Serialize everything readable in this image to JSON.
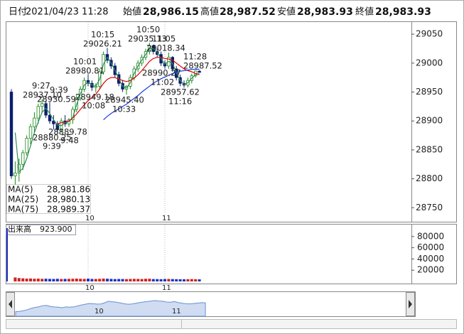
{
  "header": {
    "items": [
      {
        "label": "日付",
        "value": "2021/04/23 11:28"
      },
      {
        "label": "始値",
        "value": "28,986.15"
      },
      {
        "label": "高値",
        "value": "28,987.52"
      },
      {
        "label": "安値",
        "value": "28,983.93"
      },
      {
        "label": "終値",
        "value": "28,983.93"
      }
    ]
  },
  "chart_data": [
    {
      "type": "candlestick",
      "categories": [
        null,
        null,
        null,
        null,
        null,
        null,
        null,
        null,
        null,
        null,
        null,
        null,
        null,
        null,
        null,
        null,
        null,
        null,
        null,
        null,
        "10",
        null,
        null,
        null,
        null,
        null,
        null,
        null,
        null,
        null,
        null,
        null,
        null,
        null,
        null,
        null,
        null,
        null,
        null,
        null,
        "11",
        null,
        null,
        null,
        null,
        null,
        null,
        null,
        null,
        null
      ],
      "open": [
        28950,
        28805,
        28810,
        28825,
        28845,
        28870,
        28890,
        28905,
        28925,
        28930,
        28910,
        28900,
        28895,
        28885,
        28900,
        28895,
        28902,
        28920,
        28940,
        28955,
        28970,
        28965,
        28958,
        28960,
        28985,
        29015,
        29005,
        28995,
        28980,
        28965,
        28955,
        28960,
        28975,
        28990,
        29000,
        29010,
        29020,
        29030,
        29020,
        29015,
        29000,
        28995,
        29010,
        28990,
        28975,
        28965,
        28962,
        28970,
        28978,
        28986.15
      ],
      "high": [
        28955,
        28830,
        28835,
        28850,
        28875,
        28895,
        28915,
        28930,
        28937.1,
        28935,
        28932,
        28910,
        28900,
        28905,
        28910,
        28905,
        28925,
        28945,
        28960,
        28975,
        28980.81,
        28970,
        28965,
        28990,
        29020,
        29026.21,
        29010,
        29000,
        28985,
        28970,
        28962,
        28980,
        28995,
        29005,
        29015,
        29025,
        29035.13,
        29032,
        29025,
        29020,
        29005,
        29018.34,
        29012,
        28995,
        28980,
        28970,
        28975,
        28982,
        28987,
        28987.52
      ],
      "low": [
        28800,
        28790,
        28795,
        28815,
        28840,
        28860,
        28880,
        28895,
        28915,
        28905,
        28895,
        28885,
        28880.25,
        28880,
        28890,
        28889.78,
        28895,
        28915,
        28935,
        28950,
        28960,
        28952,
        28949.18,
        28955,
        28980,
        29000,
        28990,
        28975,
        28960,
        28950,
        28945.4,
        28955,
        28970,
        28985,
        28995,
        29005,
        29015,
        29015,
        29010,
        28995,
        28990.27,
        28990,
        28985,
        28970,
        28960,
        28957.62,
        28958,
        28965,
        28975,
        28983.93
      ],
      "close": [
        28805,
        28810,
        28825,
        28845,
        28870,
        28890,
        28905,
        28925,
        28930,
        28910,
        28900,
        28895,
        28885,
        28900,
        28895,
        28902,
        28920,
        28940,
        28955,
        28970,
        28965,
        28958,
        28960,
        28985,
        29015,
        29005,
        28995,
        28980,
        28965,
        28955,
        28960,
        28975,
        28990,
        29000,
        29010,
        29020,
        29030,
        29020,
        29015,
        29000,
        28995,
        29010,
        28990,
        28975,
        28965,
        28962,
        28970,
        28978,
        28986.15,
        28983.93
      ],
      "up_color": "#1a8a1a",
      "down_color": "#0a1f6e",
      "series": [
        {
          "name": "MA(5)",
          "color": "#2e8b57",
          "last_label": "28,981.86",
          "values": [
            null,
            28880,
            28812,
            28818,
            28835,
            28857,
            28880,
            28898,
            28915,
            28922,
            28913,
            28902,
            28893,
            28892,
            28897,
            28899,
            28906,
            28928,
            28947,
            28962,
            28967,
            28962,
            28960,
            28972,
            28998,
            29010,
            29000,
            28988,
            28973,
            28960,
            28957,
            28966,
            28982,
            28995,
            29005,
            29015,
            29025,
            29025,
            29018,
            29008,
            28998,
            29003,
            29000,
            28983,
            28970,
            28963,
            28966,
            28974,
            28980,
            28981.86
          ]
        },
        {
          "name": "MA(25)",
          "color": "#e00000",
          "last_label": "28,980.13",
          "values": [
            null,
            null,
            null,
            null,
            null,
            null,
            null,
            null,
            null,
            null,
            null,
            null,
            28895,
            28897,
            28898,
            28900,
            28905,
            28912,
            28920,
            28928,
            28935,
            28940,
            28946,
            28955,
            28965,
            28972,
            28975,
            28975,
            28972,
            28970,
            28968,
            28970,
            28974,
            28980,
            28987,
            28995,
            29003,
            29008,
            29010,
            29010,
            29008,
            29007,
            29005,
            29000,
            28995,
            28990,
            28987,
            28985,
            28982,
            28980.13
          ]
        },
        {
          "name": "MA(75)",
          "color": "#1a3adf",
          "last_label": "28,989.37",
          "values": [
            null,
            null,
            null,
            null,
            null,
            null,
            null,
            null,
            null,
            null,
            null,
            null,
            null,
            null,
            null,
            null,
            null,
            null,
            null,
            null,
            null,
            null,
            null,
            null,
            28902,
            28908,
            28913,
            28917,
            28921,
            28925,
            28929,
            28934,
            28939,
            28944,
            28950,
            28955,
            28960,
            28965,
            28969,
            28973,
            28976,
            28979,
            28982,
            28984,
            28986,
            28987,
            28988,
            28989,
            28989,
            28989.37
          ]
        }
      ],
      "annotations": [
        "10:15",
        "29026.21",
        "10:50",
        "29035.13",
        "11:05",
        "29018.34",
        "11:28",
        "28987.52",
        "10:01",
        "28980.81",
        "28990.27",
        "11:02",
        "28957.62",
        "11:16",
        "9:27",
        "28937.10",
        "9:39",
        "28930.59",
        "28949.18",
        "10:08",
        "28945.40",
        "10:33",
        "28889.78",
        "28880.25",
        "9:48",
        "9:39"
      ],
      "ylim": [
        28727,
        29071
      ],
      "yticks": [
        28750,
        28800,
        28850,
        28900,
        28950,
        29000,
        29050
      ],
      "xgrid": true
    },
    {
      "type": "bar",
      "title": "出来高",
      "current_label": "923.900",
      "values": [
        95000,
        7000,
        6000,
        5500,
        5000,
        5200,
        4800,
        5000,
        4600,
        4800,
        4500,
        4400,
        4700,
        4300,
        4500,
        4600,
        4800,
        5000,
        4700,
        4500,
        4900,
        4400,
        4300,
        4600,
        5000,
        4800,
        4500,
        4200,
        4400,
        4300,
        4100,
        4400,
        4600,
        4500,
        4300,
        4700,
        4800,
        4200,
        4100,
        4000,
        4300,
        4400,
        4200,
        4000,
        3900,
        3800,
        4000,
        4100,
        3900,
        3700
      ],
      "ylim": [
        0,
        100000
      ],
      "yticks": [
        20000,
        40000,
        60000,
        80000
      ],
      "xgrid": true
    }
  ]
}
